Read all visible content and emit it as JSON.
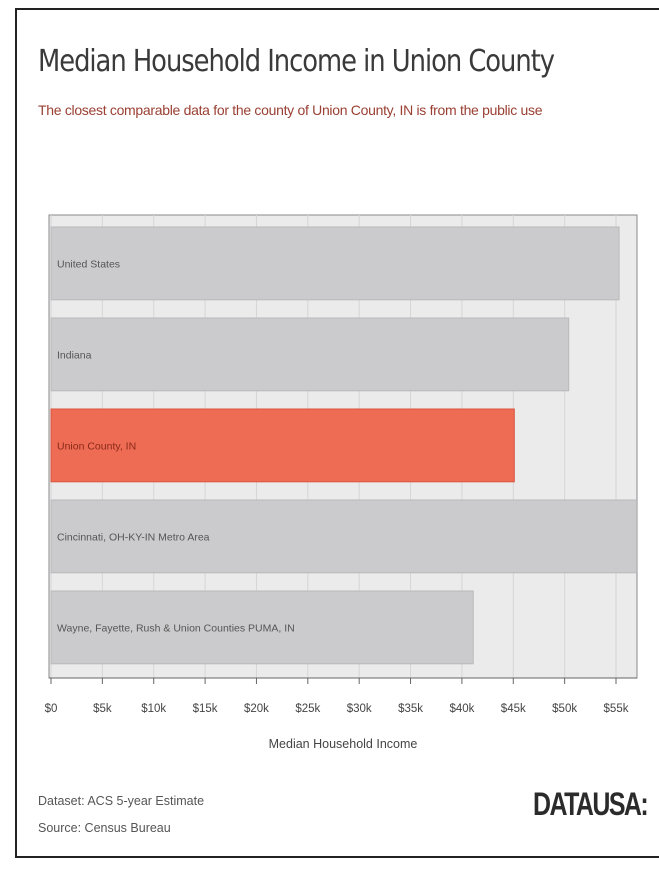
{
  "header": {
    "title": "Median Household Income in Union County",
    "subtitle": "The closest comparable data for the county of Union County, IN is from the public use"
  },
  "footer": {
    "dataset": "Dataset: ACS 5-year Estimate",
    "source": "Source: Census Bureau",
    "logo": "DATAUSA:"
  },
  "colors": {
    "highlight": "#EE6B54",
    "bar": "#CBCBCD",
    "plot_background": "#EBEBEB"
  },
  "chart_data": {
    "type": "bar",
    "orientation": "horizontal",
    "title": "Median Household Income in Union County",
    "xlabel": "Median Household Income",
    "ylabel": "",
    "xlim": [
      0,
      57000
    ],
    "categories": [
      "United States",
      "Indiana",
      "Union County, IN",
      "Cincinnati, OH-KY-IN Metro Area",
      "Wayne, Fayette, Rush & Union Counties PUMA, IN"
    ],
    "values": [
      55300,
      50400,
      45100,
      57000,
      41100
    ],
    "highlight_index": 2,
    "tick_labels": [
      "$0",
      "$5k",
      "$10k",
      "$15k",
      "$20k",
      "$25k",
      "$30k",
      "$35k",
      "$40k",
      "$45k",
      "$50k",
      "$55k"
    ],
    "tick_values": [
      0,
      5000,
      10000,
      15000,
      20000,
      25000,
      30000,
      35000,
      40000,
      45000,
      50000,
      55000
    ],
    "grid": true,
    "legend": "none"
  }
}
